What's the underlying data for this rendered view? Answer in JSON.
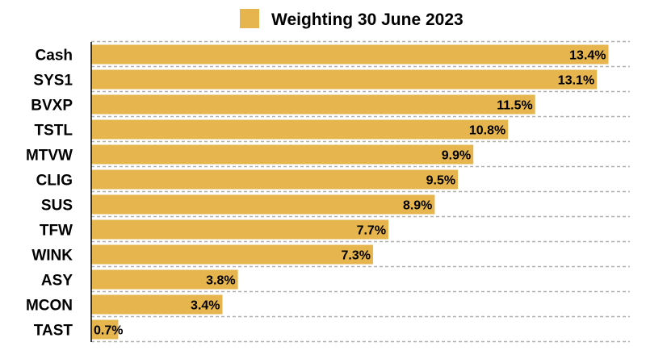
{
  "chart_data": {
    "type": "bar",
    "orientation": "horizontal",
    "categories": [
      "Cash",
      "SYS1",
      "BVXP",
      "TSTL",
      "MTVW",
      "CLIG",
      "SUS",
      "TFW",
      "WINK",
      "ASY",
      "MCON",
      "TAST"
    ],
    "series": [
      {
        "name": "Weighting 30 June 2023",
        "values": [
          13.4,
          13.1,
          11.5,
          10.8,
          9.9,
          9.5,
          8.9,
          7.7,
          7.3,
          3.8,
          3.4,
          0.7
        ],
        "labels": [
          "13.4%",
          "13.1%",
          "11.5%",
          "10.8%",
          "9.9%",
          "9.5%",
          "8.9%",
          "7.7%",
          "7.3%",
          "3.8%",
          "3.4%",
          "0.7%"
        ],
        "color": "#E6B54E"
      }
    ],
    "xlim": [
      0,
      20
    ],
    "grid": "horizontal dashed",
    "legend": "top-center",
    "title": "",
    "xlabel": "",
    "ylabel": ""
  }
}
